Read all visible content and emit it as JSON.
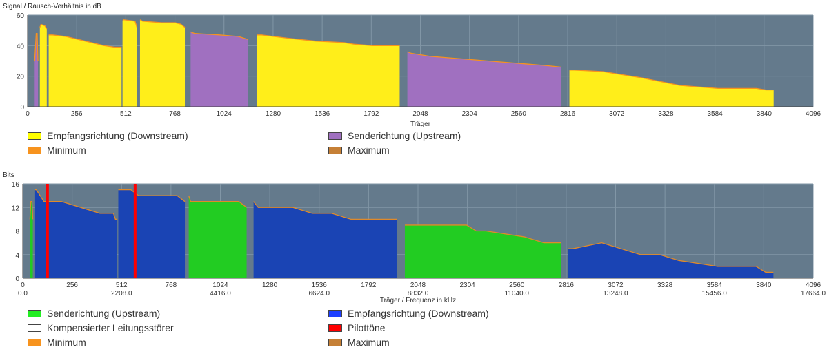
{
  "chart_data": [
    {
      "type": "area",
      "title": "Signal / Rausch-Verhältnis in dB",
      "xlabel": "Träger",
      "ylabel": "",
      "xlim": [
        0,
        4096
      ],
      "ylim": [
        0,
        60
      ],
      "x_ticks": [
        0,
        256,
        512,
        768,
        1024,
        1280,
        1536,
        1792,
        2048,
        2304,
        2560,
        2816,
        3072,
        3328,
        3584,
        3840,
        4096
      ],
      "y_ticks": [
        0,
        20,
        40,
        60
      ],
      "grid": true,
      "legend_position": "bottom",
      "legend": [
        {
          "label": "Empfangsrichtung (Downstream)",
          "color": "#ffff00"
        },
        {
          "label": "Senderichtung (Upstream)",
          "color": "#a070c0"
        },
        {
          "label": "Minimum",
          "color": "#f7931e"
        },
        {
          "label": "Maximum",
          "color": "#c68036"
        }
      ],
      "series": [
        {
          "name": "Empfangsrichtung (Downstream)",
          "color": "#ffee1a",
          "segments": [
            {
              "x": [
                64,
                70,
                90,
                100
              ],
              "y": [
                52,
                54,
                53,
                51
              ]
            },
            {
              "x": [
                110,
                130,
                200,
                300,
                400,
                455,
                458,
                480,
                490
              ],
              "y": [
                47,
                47,
                46,
                43,
                40,
                39,
                39,
                39,
                39
              ]
            },
            {
              "x": [
                495,
                500,
                560,
                570
              ],
              "y": [
                56,
                57,
                56,
                52
              ]
            },
            {
              "x": [
                586,
                600,
                700,
                770,
                800,
                820
              ],
              "y": [
                57,
                56,
                55,
                55,
                54,
                52
              ]
            },
            {
              "x": [
                1196,
                1220,
                1350,
                1500,
                1650,
                1700,
                1800,
                1900,
                1940
              ],
              "y": [
                47,
                47,
                45,
                43,
                42,
                41,
                40,
                40,
                40
              ]
            },
            {
              "x": [
                2825,
                2850,
                3000,
                3200,
                3400,
                3600,
                3800,
                3850,
                3890
              ],
              "y": [
                24,
                24,
                23,
                19,
                14,
                12,
                12,
                11,
                11
              ]
            }
          ]
        },
        {
          "name": "Senderichtung (Upstream)",
          "color": "#a070c0",
          "segments": [
            {
              "x": [
                37,
                45,
                50,
                54
              ],
              "y": [
                30,
                48,
                48,
                30
              ]
            },
            {
              "x": [
                850,
                870,
                1000,
                1100,
                1150
              ],
              "y": [
                49,
                48,
                47,
                46,
                44
              ]
            },
            {
              "x": [
                1980,
                2000,
                2100,
                2300,
                2500,
                2600,
                2700,
                2780
              ],
              "y": [
                36,
                35,
                33,
                31,
                29,
                28,
                27,
                26
              ]
            }
          ]
        }
      ]
    },
    {
      "type": "area",
      "title": "Bits",
      "xlabel": "Träger / Frequenz in kHz",
      "ylabel": "",
      "xlim": [
        0,
        4096
      ],
      "ylim": [
        0,
        16
      ],
      "x_ticks": [
        0,
        256,
        512,
        768,
        1024,
        1280,
        1536,
        1792,
        2048,
        2304,
        2560,
        2816,
        3072,
        3328,
        3584,
        3840,
        4096
      ],
      "x_ticks_secondary": [
        "0.0",
        "",
        "2208.0",
        "",
        "4416.0",
        "",
        "6624.0",
        "",
        "8832.0",
        "",
        "11040.0",
        "",
        "13248.0",
        "",
        "15456.0",
        "",
        "17664.0"
      ],
      "y_ticks": [
        0,
        4,
        8,
        12,
        16
      ],
      "grid": true,
      "legend_position": "bottom",
      "legend": [
        {
          "label": "Senderichtung (Upstream)",
          "color": "#22ee22"
        },
        {
          "label": "Empfangsrichtung (Downstream)",
          "color": "#1e40ff"
        },
        {
          "label": "Kompensierter Leitungsstörer",
          "color": "#ffffff"
        },
        {
          "label": "Pilottöne",
          "color": "#ff0000"
        },
        {
          "label": "Maximum",
          "color": "#c68036"
        },
        {
          "label": "Minimum",
          "color": "#f7931e"
        }
      ],
      "series": [
        {
          "name": "Empfangsrichtung (Downstream)",
          "color": "#1a44b4",
          "segments": [
            {
              "x": [
                64,
                70,
                110,
                120,
                200,
                300,
                400,
                470,
                480,
                490
              ],
              "y": [
                15,
                15,
                13,
                13,
                13,
                12,
                11,
                11,
                10,
                10
              ]
            },
            {
              "x": [
                495,
                500,
                560,
                600,
                700,
                750,
                800,
                840
              ],
              "y": [
                15,
                15,
                15,
                14,
                14,
                14,
                14,
                13
              ]
            },
            {
              "x": [
                1196,
                1220,
                1300,
                1400,
                1500,
                1600,
                1700,
                1800,
                1900,
                1940
              ],
              "y": [
                13,
                12,
                12,
                12,
                11,
                11,
                10,
                10,
                10,
                10
              ]
            },
            {
              "x": [
                2825,
                2850,
                3000,
                3100,
                3200,
                3300,
                3400,
                3600,
                3800,
                3850,
                3890
              ],
              "y": [
                5,
                5,
                6,
                5,
                4,
                4,
                3,
                2,
                2,
                1,
                1
              ]
            }
          ]
        },
        {
          "name": "Senderichtung (Upstream)",
          "color": "#22cc22",
          "segments": [
            {
              "x": [
                37,
                42,
                48,
                52
              ],
              "y": [
                10,
                13,
                13,
                10
              ]
            },
            {
              "x": [
                860,
                870,
                900,
                1000,
                1120,
                1160
              ],
              "y": [
                14,
                13,
                13,
                13,
                13,
                12
              ]
            },
            {
              "x": [
                1980,
                2000,
                2100,
                2300,
                2350,
                2400,
                2600,
                2700,
                2790
              ],
              "y": [
                9,
                9,
                9,
                9,
                8,
                8,
                7,
                6,
                6
              ]
            }
          ]
        },
        {
          "name": "Pilottöne",
          "color": "#ff0000",
          "x": [
            128,
            582
          ],
          "y": [
            16,
            16
          ]
        }
      ]
    }
  ],
  "legends": {
    "snr": [
      "Empfangsrichtung (Downstream)",
      "Senderichtung (Upstream)",
      "Minimum",
      "Maximum"
    ],
    "bits": [
      "Senderichtung (Upstream)",
      "Empfangsrichtung (Downstream)",
      "Kompensierter Leitungsstörer",
      "Pilottöne",
      "Minimum",
      "Maximum"
    ]
  }
}
